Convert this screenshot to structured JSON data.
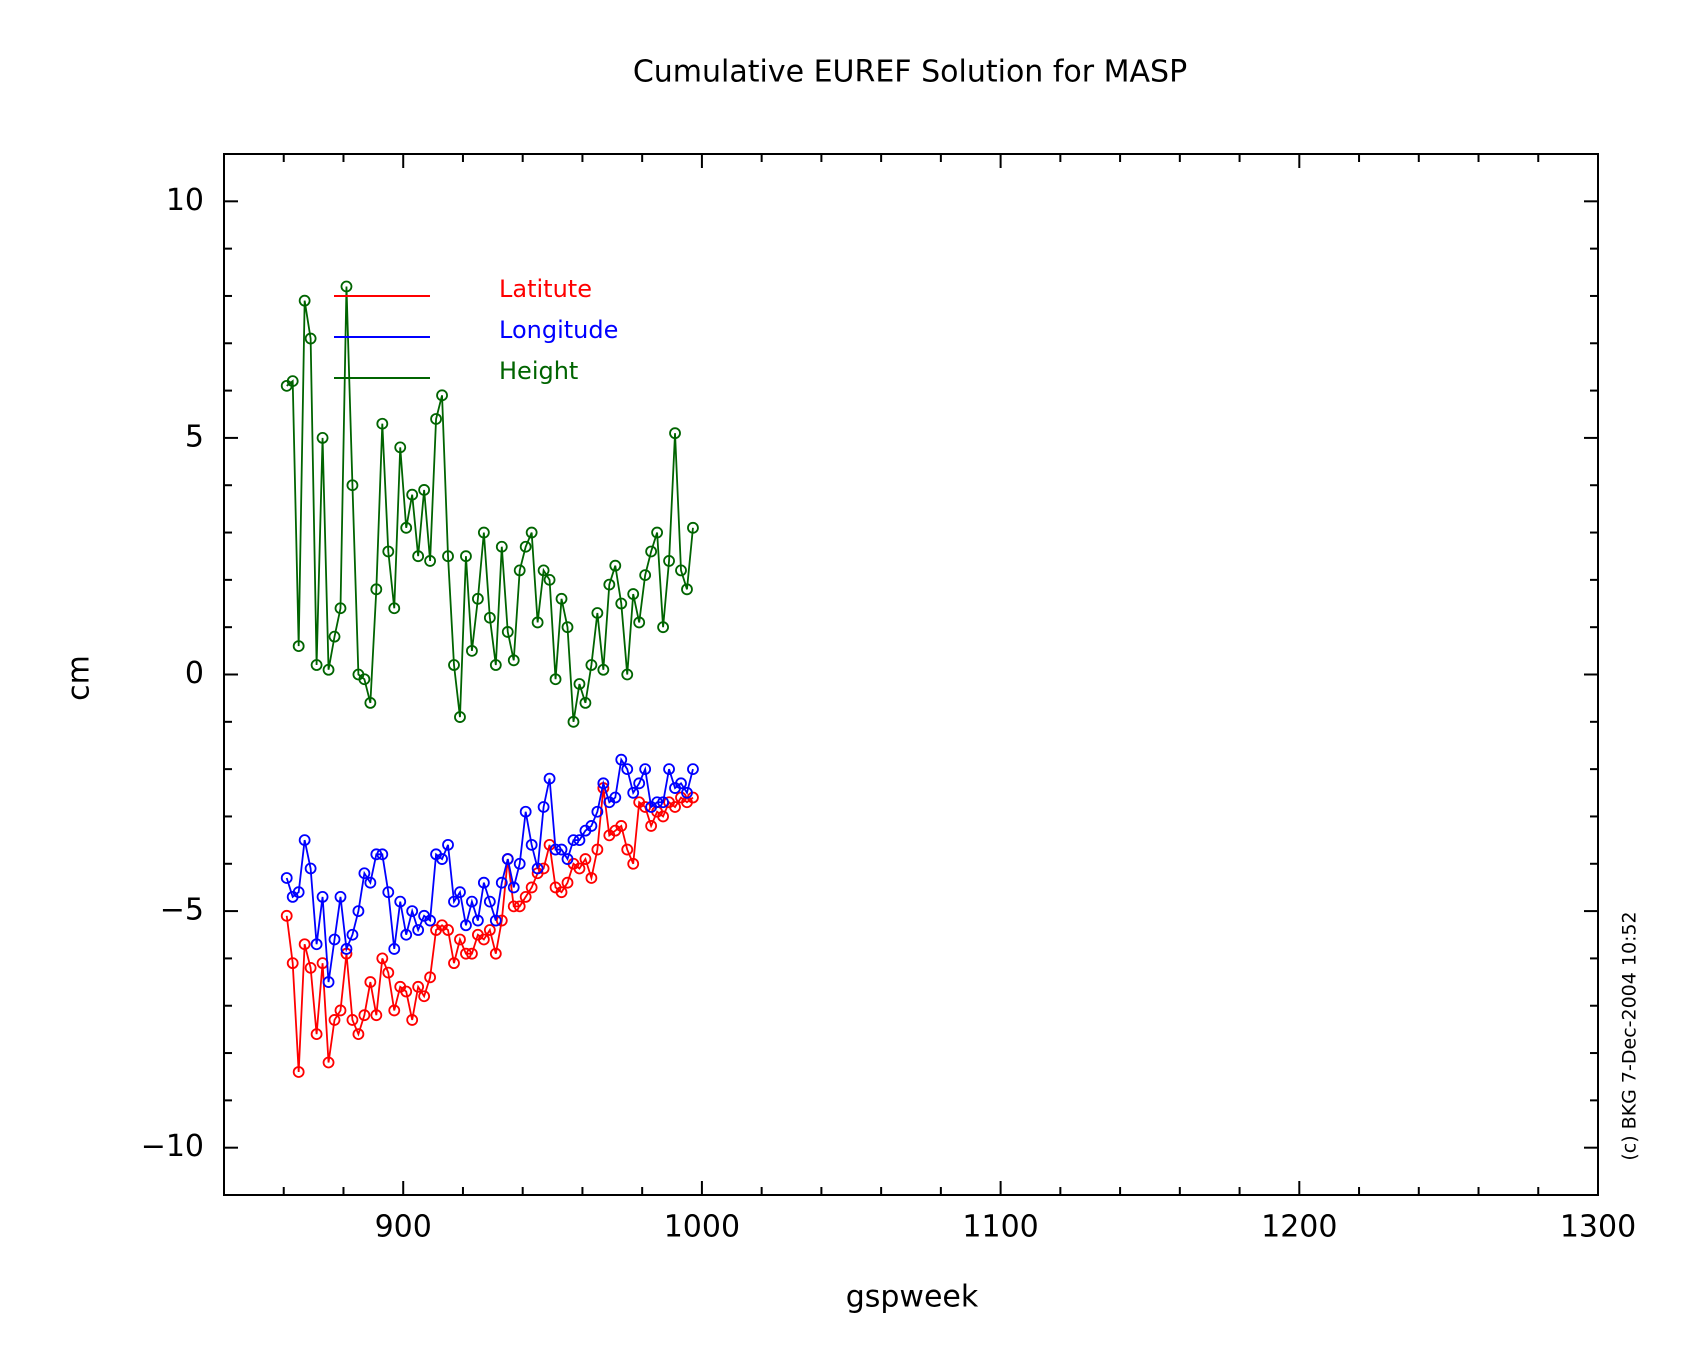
{
  "chart_data": {
    "type": "line",
    "title": "Cumulative EUREF Solution for MASP",
    "xlabel": "gspweek",
    "ylabel": "cm",
    "annotation": "(c) BKG 7-Dec-2004 10:52",
    "legend": "upper left",
    "markers": true,
    "xlim": [
      840,
      1300
    ],
    "ylim": [
      -11,
      11
    ],
    "xticks": [
      900,
      1000,
      1100,
      1200,
      1300
    ],
    "yticks": [
      -10,
      -5,
      0,
      5,
      10
    ],
    "xminorticks": [
      860,
      880,
      920,
      940,
      960,
      980,
      1020,
      1040,
      1060,
      1080,
      1120,
      1140,
      1160,
      1180,
      1220,
      1240,
      1260,
      1280
    ],
    "yminorticks": [
      -9,
      -8,
      -7,
      -6,
      -4,
      -3,
      -2,
      -1,
      1,
      2,
      3,
      4,
      6,
      7,
      8,
      9
    ],
    "x": [
      861,
      863,
      865,
      867,
      869,
      871,
      873,
      875,
      877,
      879,
      881,
      883,
      885,
      887,
      889,
      891,
      893,
      895,
      897,
      899,
      901,
      903,
      905,
      907,
      909,
      911,
      913,
      915,
      917,
      919,
      921,
      923,
      925,
      927,
      929,
      931,
      933,
      935,
      937,
      939,
      941,
      943,
      945,
      947,
      949,
      951,
      953,
      955,
      957,
      959,
      961,
      963,
      965,
      967,
      969,
      971,
      973,
      975,
      977,
      979,
      981,
      983,
      985,
      987,
      989,
      991,
      993,
      995,
      997
    ],
    "series": [
      {
        "name": "Latitute",
        "color": "#ff0000",
        "values": [
          -5.1,
          -6.1,
          -8.4,
          -5.7,
          -6.2,
          -7.6,
          -6.1,
          -8.2,
          -7.3,
          -7.1,
          -5.9,
          -7.3,
          -7.6,
          -7.2,
          -6.5,
          -7.2,
          -6.0,
          -6.3,
          -7.1,
          -6.6,
          -6.7,
          -7.3,
          -6.6,
          -6.8,
          -6.4,
          -5.4,
          -5.3,
          -5.4,
          -6.1,
          -5.6,
          -5.9,
          -5.9,
          -5.5,
          -5.6,
          -5.4,
          -5.9,
          -5.2,
          -3.9,
          -4.9,
          -4.9,
          -4.7,
          -4.5,
          -4.2,
          -4.1,
          -3.6,
          -4.5,
          -4.6,
          -4.4,
          -4.0,
          -4.1,
          -3.9,
          -4.3,
          -3.7,
          -2.4,
          -3.4,
          -3.3,
          -3.2,
          -3.7,
          -4.0,
          -2.7,
          -2.8,
          -3.2,
          -2.9,
          -3.0,
          -2.7,
          -2.8,
          -2.6,
          -2.7,
          -2.6
        ]
      },
      {
        "name": "Longitude",
        "color": "#0000ff",
        "values": [
          -4.3,
          -4.7,
          -4.6,
          -3.5,
          -4.1,
          -5.7,
          -4.7,
          -6.5,
          -5.6,
          -4.7,
          -5.8,
          -5.5,
          -5.0,
          -4.2,
          -4.4,
          -3.8,
          -3.8,
          -4.6,
          -5.8,
          -4.8,
          -5.5,
          -5.0,
          -5.4,
          -5.1,
          -5.2,
          -3.8,
          -3.9,
          -3.6,
          -4.8,
          -4.6,
          -5.3,
          -4.8,
          -5.2,
          -4.4,
          -4.8,
          -5.2,
          -4.4,
          -3.9,
          -4.5,
          -4.0,
          -2.9,
          -3.6,
          -4.1,
          -2.8,
          -2.2,
          -3.7,
          -3.7,
          -3.9,
          -3.5,
          -3.5,
          -3.3,
          -3.2,
          -2.9,
          -2.3,
          -2.7,
          -2.6,
          -1.8,
          -2.0,
          -2.5,
          -2.3,
          -2.0,
          -2.8,
          -2.7,
          -2.7,
          -2.0,
          -2.4,
          -2.3,
          -2.5,
          -2.0
        ]
      },
      {
        "name": "Height",
        "color": "#006400",
        "values": [
          6.1,
          6.2,
          0.6,
          7.9,
          7.1,
          0.2,
          5.0,
          0.1,
          0.8,
          1.4,
          8.2,
          4.0,
          0.0,
          -0.1,
          -0.6,
          1.8,
          5.3,
          2.6,
          1.4,
          4.8,
          3.1,
          3.8,
          2.5,
          3.9,
          2.4,
          5.4,
          5.9,
          2.5,
          0.2,
          -0.9,
          2.5,
          0.5,
          1.6,
          3.0,
          1.2,
          0.2,
          2.7,
          0.9,
          0.3,
          2.2,
          2.7,
          3.0,
          1.1,
          2.2,
          2.0,
          -0.1,
          1.6,
          1.0,
          -1.0,
          -0.2,
          -0.6,
          0.2,
          1.3,
          0.1,
          1.9,
          2.3,
          1.5,
          0.0,
          1.7,
          1.1,
          2.1,
          2.6,
          3.0,
          1.0,
          2.4,
          5.1,
          2.2,
          1.8,
          3.1
        ]
      }
    ]
  }
}
